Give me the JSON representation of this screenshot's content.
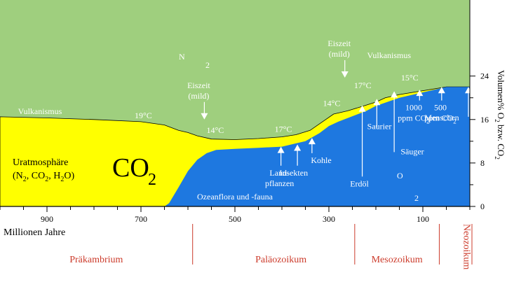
{
  "chart_data": {
    "type": "area",
    "title": "",
    "xlabel": "Millionen Jahre",
    "ylabel": "Volumen% O2 bzw. CO2",
    "x_ticks": [
      900,
      700,
      500,
      300,
      100
    ],
    "y_ticks": [
      0,
      8,
      16,
      24
    ],
    "xlim": [
      1000,
      0
    ],
    "ylim": [
      0,
      38
    ],
    "colors": {
      "n2": "#9fcf7e",
      "co2": "#ffff00",
      "o2": "#1e78e0",
      "sky_line": "#000000",
      "era_line": "#cc3b2b"
    },
    "series": [
      {
        "name": "CO2",
        "x": [
          1000,
          900,
          800,
          700,
          650,
          620,
          600,
          580,
          550,
          500,
          450,
          400,
          370,
          340,
          310,
          290,
          260,
          230,
          200,
          180,
          150,
          100,
          50,
          0
        ],
        "y": [
          16.5,
          16.3,
          16.0,
          15.6,
          15.0,
          14.0,
          13.6,
          13.0,
          12.4,
          12.3,
          12.5,
          12.8,
          13.2,
          14.0,
          15.8,
          17.0,
          17.6,
          18.4,
          19.2,
          20.0,
          20.6,
          21.3,
          22.0,
          22.0
        ]
      },
      {
        "name": "O2",
        "x": [
          1000,
          700,
          650,
          640,
          620,
          600,
          580,
          560,
          540,
          500,
          450,
          400,
          370,
          350,
          320,
          300,
          280,
          250,
          220,
          200,
          150,
          100,
          50,
          0
        ],
        "y": [
          0,
          0,
          0,
          0.6,
          3.5,
          6.5,
          8.6,
          9.8,
          10.4,
          10.6,
          10.8,
          11.0,
          11.6,
          12.0,
          13.5,
          14.8,
          15.6,
          16.6,
          17.6,
          18.5,
          20.0,
          21.0,
          22.0,
          22.0
        ]
      }
    ],
    "labels": {
      "n2": "N",
      "n2_sub": "2",
      "co2": "CO",
      "co2_sub": "2",
      "o2": "O",
      "o2_sub": "2",
      "uratmo": "Uratmosphäre",
      "uratmo_formula": {
        "open": "(N",
        "s1": "2",
        "mid1": ", CO",
        "s2": "2",
        "mid2": ", H",
        "s3": "2",
        "close": "O)"
      },
      "ylabel_parts": {
        "a": "Volumen% O",
        "s1": "2",
        "b": " bzw. CO",
        "s2": "2"
      }
    },
    "annotations": [
      {
        "text": "Vulkanismus",
        "x": 915,
        "y": 17.0,
        "color": "white"
      },
      {
        "text": "19°C",
        "x": 695,
        "y": 16.2,
        "color": "white"
      },
      {
        "text": "Eiszeit",
        "x": 577,
        "y": 21.8,
        "color": "white",
        "line2": "(mild)",
        "arrow": true
      },
      {
        "text": "14°C",
        "x": 542,
        "y": 13.5,
        "color": "white"
      },
      {
        "text": "17°C",
        "x": 397,
        "y": 13.7,
        "color": "white"
      },
      {
        "text": "Eiszeit",
        "x": 278,
        "y": 29.5,
        "color": "white",
        "line2": "(mild)",
        "arrow": true
      },
      {
        "text": "14°C",
        "x": 294,
        "y": 18.5,
        "color": "white"
      },
      {
        "text": "Vulkanismus",
        "x": 172,
        "y": 27.3,
        "color": "white"
      },
      {
        "text": "17°C",
        "x": 228,
        "y": 21.8,
        "color": "white"
      },
      {
        "text": "15°C",
        "x": 128,
        "y": 23.2,
        "color": "white"
      }
    ],
    "events": [
      {
        "label": "Land-",
        "label2": "pflanzen",
        "x": 405,
        "arrow_x": 402,
        "arrow_top": 11.0,
        "arrow_bottom": 7.5
      },
      {
        "label": "Insekten",
        "x": 375,
        "arrow_x": 367,
        "arrow_top": 11.4,
        "arrow_bottom": 7.5
      },
      {
        "label": "Kohle",
        "x": 338,
        "arrow_x": 336,
        "arrow_top": 12.6,
        "arrow_bottom": 9.8
      },
      {
        "label": "Erdöl",
        "x": 235,
        "arrow_x": 229,
        "arrow_top": 18.6,
        "arrow_bottom": 5.5
      },
      {
        "label": "Saurier",
        "x": 195,
        "arrow_x": 198,
        "arrow_top": 19.8,
        "arrow_bottom": 14.5
      },
      {
        "label": "Säuger",
        "x": 145,
        "arrow_x": 161,
        "arrow_top": 21.2,
        "arrow_bottom": 10.0
      },
      {
        "label": "1000",
        "label2": "ppm CO",
        "label2_sub": "2",
        "x": 103,
        "arrow_x": 107,
        "arrow_top": 21.5,
        "arrow_bottom": 19.5
      },
      {
        "label": "500",
        "label2": "ppm CO",
        "label2_sub": "2",
        "x": 60,
        "arrow_x": 60,
        "arrow_top": 22.0,
        "arrow_bottom": 19.5
      },
      {
        "label": "Menschen",
        "x": 40,
        "arrow_x": 3,
        "arrow_top": 22.0,
        "arrow_bottom": 16.5
      }
    ],
    "bottom_labels": [
      {
        "text": "Ozeanflora und -fauna",
        "x": 500,
        "y": 1.3
      }
    ],
    "eras": [
      {
        "name": "Präkambrium",
        "x_center": 795,
        "vertical": false
      },
      {
        "name": "Paläozoikum",
        "x_center": 402,
        "vertical": false
      },
      {
        "name": "Mesozoikum",
        "x_center": 155,
        "vertical": false
      },
      {
        "name": "Neozoikum",
        "x_center": 22,
        "vertical": true
      }
    ],
    "era_boundaries": [
      590,
      245,
      65,
      0
    ]
  }
}
